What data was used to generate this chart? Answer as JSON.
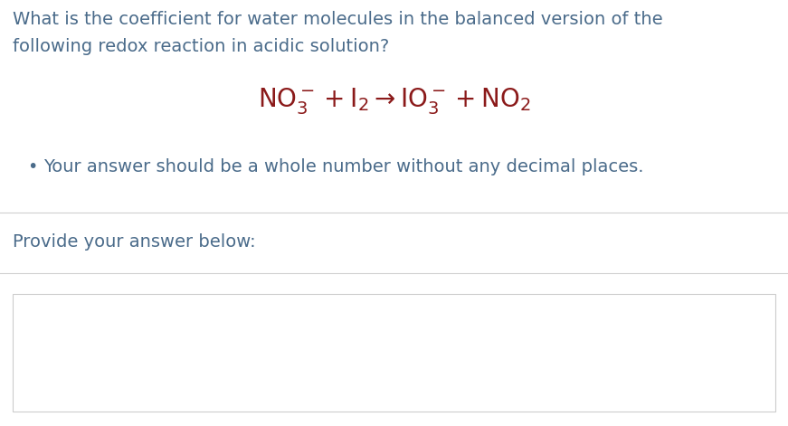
{
  "background_color": "#ffffff",
  "question_line1": "What is the coefficient for water molecules in the balanced version of the",
  "question_line2": "following redox reaction in acidic solution?",
  "bullet_text": "Your answer should be a whole number without any decimal places.",
  "provide_label": "Provide your answer below:",
  "text_color": "#4a6b8a",
  "equation_color": "#8b1a1a",
  "question_fontsize": 14,
  "equation_fontsize": 20,
  "bullet_fontsize": 14,
  "provide_fontsize": 14,
  "divider_color": "#d0d0d0",
  "input_box_color": "#ffffff",
  "input_box_border": "#cccccc"
}
